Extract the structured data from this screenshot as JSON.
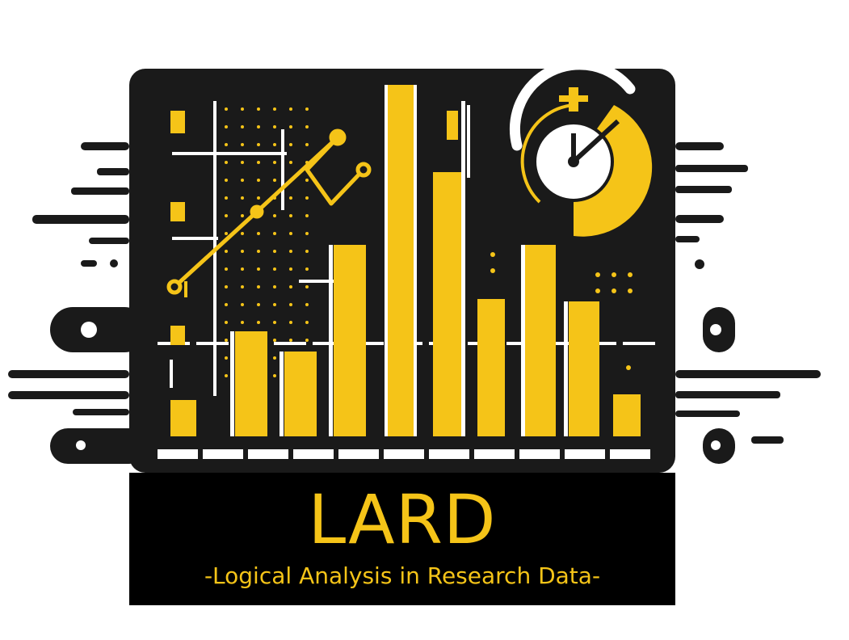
{
  "logo": {
    "title": "LARD",
    "subtitle": "-Logical Analysis in Research Data-"
  },
  "colors": {
    "accent": "#f5c418",
    "dark": "#1a1a1a",
    "panel": "#000000",
    "light": "#ffffff"
  },
  "icons": [
    "bar-chart-icon",
    "line-chart-icon",
    "stopwatch-icon",
    "speed-lines-icon"
  ]
}
